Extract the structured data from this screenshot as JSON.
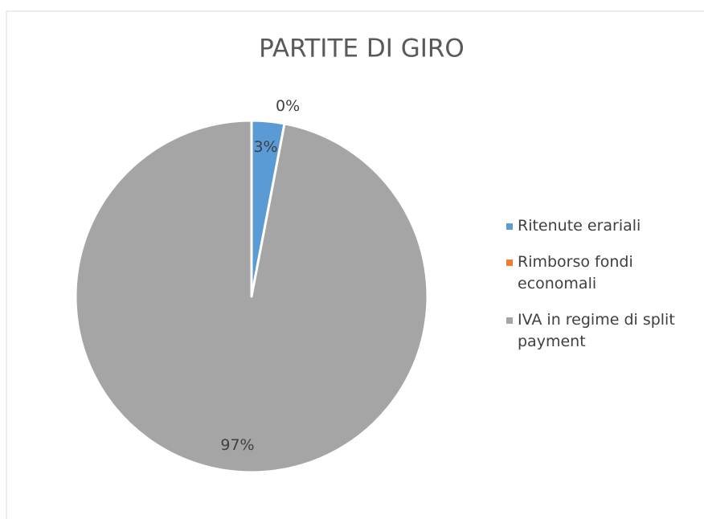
{
  "chart_data": {
    "type": "pie",
    "title": "PARTITE DI GIRO",
    "categories": [
      "Ritenute erariali",
      "Rimborso fondi economali",
      "IVA in regime di split payment"
    ],
    "values": [
      3,
      0,
      97
    ],
    "value_labels": [
      "3%",
      "0%",
      "97%"
    ],
    "colors": [
      "#5b9bd5",
      "#ed7d31",
      "#a5a5a5"
    ],
    "legend": "right"
  }
}
